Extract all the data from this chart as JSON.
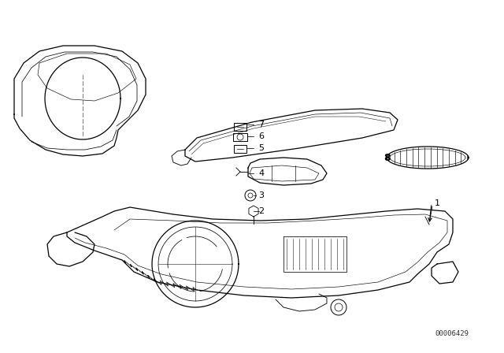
{
  "bg_color": "#ffffff",
  "diagram_id": "00006429",
  "line_color": "#000000",
  "text_color": "#000000"
}
